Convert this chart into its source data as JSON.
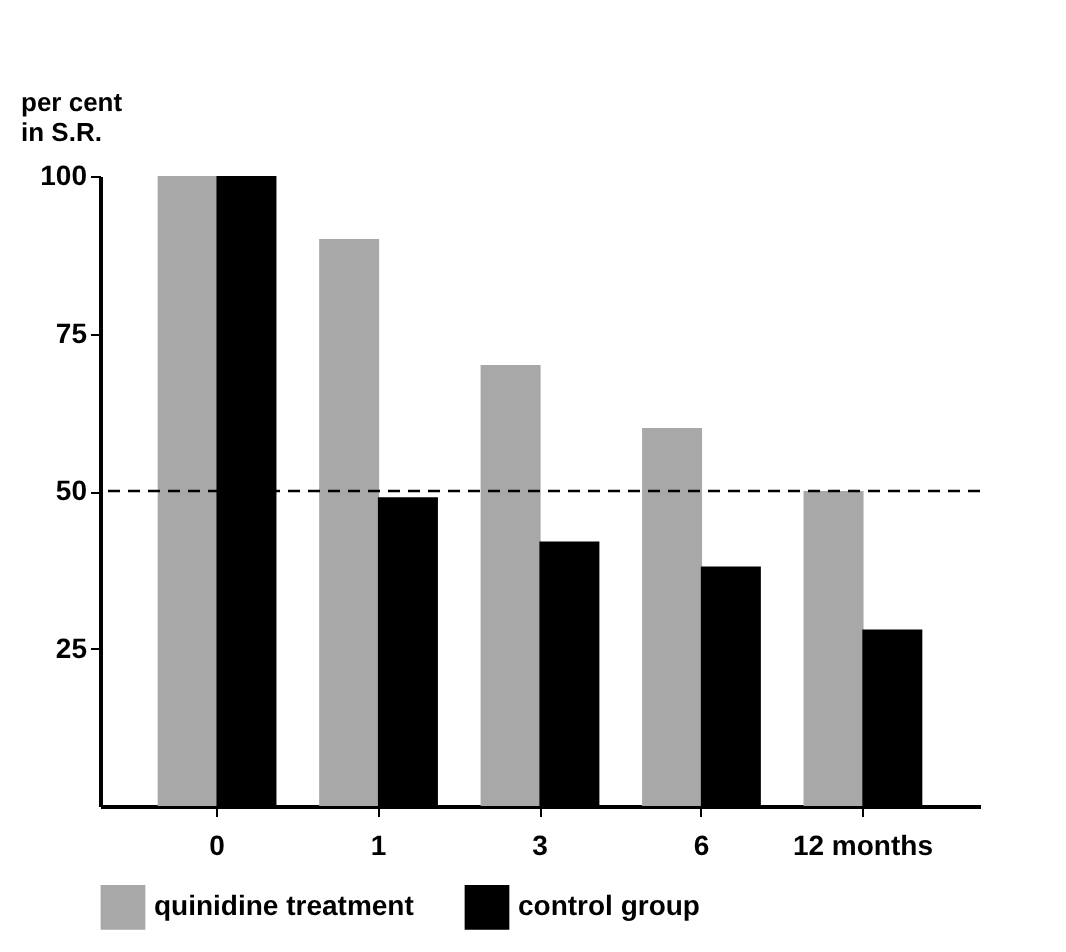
{
  "chart_data": {
    "type": "bar",
    "ylabel": "per cent\nin S.R.",
    "categories": [
      "0",
      "1",
      "3",
      "6",
      "12 months"
    ],
    "series": [
      {
        "name": "quinidine treatment",
        "color": "#a8a8a8",
        "values": [
          100,
          90,
          70,
          60,
          50
        ]
      },
      {
        "name": "control group",
        "color": "#000000",
        "values": [
          100,
          49,
          42,
          38,
          28
        ]
      }
    ],
    "ylim": [
      0,
      100
    ],
    "yticks": [
      25,
      50,
      75,
      100
    ],
    "grid": false,
    "legend": "bottom",
    "ref_lines": [
      {
        "axis": "y",
        "value": 50,
        "line_style": "dashed",
        "color": "#000000"
      }
    ]
  }
}
